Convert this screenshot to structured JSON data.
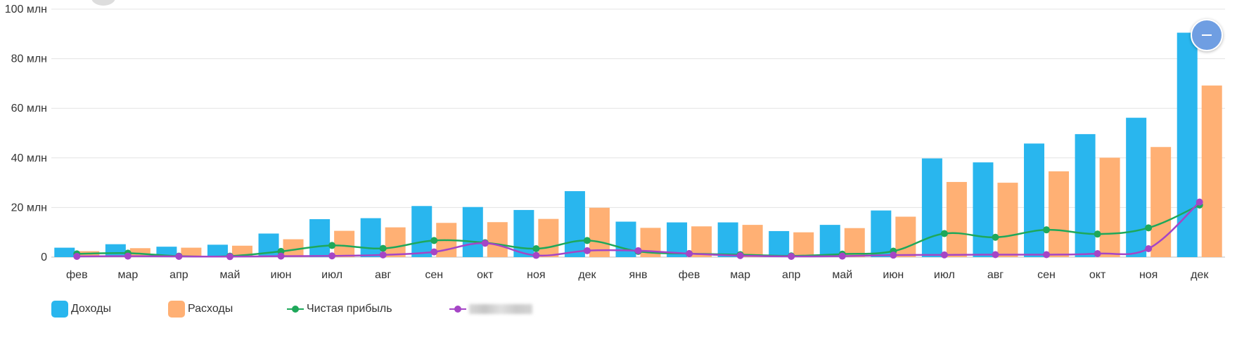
{
  "chart_data": {
    "type": "bar",
    "categories": [
      "фев",
      "мар",
      "апр",
      "май",
      "июн",
      "июл",
      "авг",
      "сен",
      "окт",
      "ноя",
      "дек",
      "янв",
      "фев",
      "мар",
      "апр",
      "май",
      "июн",
      "июл",
      "авг",
      "сен",
      "окт",
      "ноя",
      "дек"
    ],
    "ylim": [
      0,
      100
    ],
    "yticks": [
      0,
      20,
      40,
      60,
      80,
      100
    ],
    "ytick_labels": [
      "0",
      "20 млн",
      "40 млн",
      "60 млн",
      "80 млн",
      "100 млн"
    ],
    "grid": true,
    "legend_position": "bottom-left",
    "series": [
      {
        "name": "Доходы",
        "type": "bar",
        "color": "#29b6ee",
        "values": [
          3.8,
          5.2,
          4.2,
          5.0,
          9.5,
          15.3,
          15.7,
          20.6,
          20.2,
          19.0,
          26.6,
          14.3,
          14.0,
          14.0,
          10.5,
          13.0,
          18.8,
          39.8,
          38.2,
          45.8,
          49.6,
          56.2,
          90.5
        ]
      },
      {
        "name": "Расходы",
        "type": "bar",
        "color": "#ffb074",
        "values": [
          2.4,
          3.6,
          3.8,
          4.6,
          7.2,
          10.6,
          12.0,
          13.8,
          14.1,
          15.4,
          19.9,
          11.8,
          12.4,
          13.0,
          10.0,
          11.7,
          16.3,
          30.3,
          30.0,
          34.6,
          40.1,
          44.4,
          69.2
        ]
      },
      {
        "name": "Чистая прибыль",
        "type": "line",
        "color": "#1ea85a",
        "values": [
          1.3,
          1.6,
          0.4,
          0.4,
          2.3,
          4.7,
          3.5,
          6.7,
          5.8,
          3.4,
          6.7,
          2.3,
          1.4,
          1.0,
          0.5,
          1.2,
          2.4,
          9.5,
          8.0,
          11.0,
          9.3,
          11.8,
          21.0
        ]
      },
      {
        "name": "",
        "type": "line",
        "color": "#a545c6",
        "values": [
          0.3,
          0.4,
          0.3,
          0.2,
          0.4,
          0.5,
          0.9,
          2.1,
          5.6,
          0.7,
          2.6,
          2.6,
          1.4,
          0.6,
          0.3,
          0.4,
          0.8,
          0.9,
          1.0,
          1.0,
          1.4,
          3.4,
          22.2
        ]
      }
    ]
  },
  "legend": {
    "income_label": "Доходы",
    "expense_label": "Расходы",
    "profit_label": "Чистая прибыль",
    "fourth_label": ""
  },
  "controls": {
    "zoom_out_icon": "minus-icon"
  }
}
